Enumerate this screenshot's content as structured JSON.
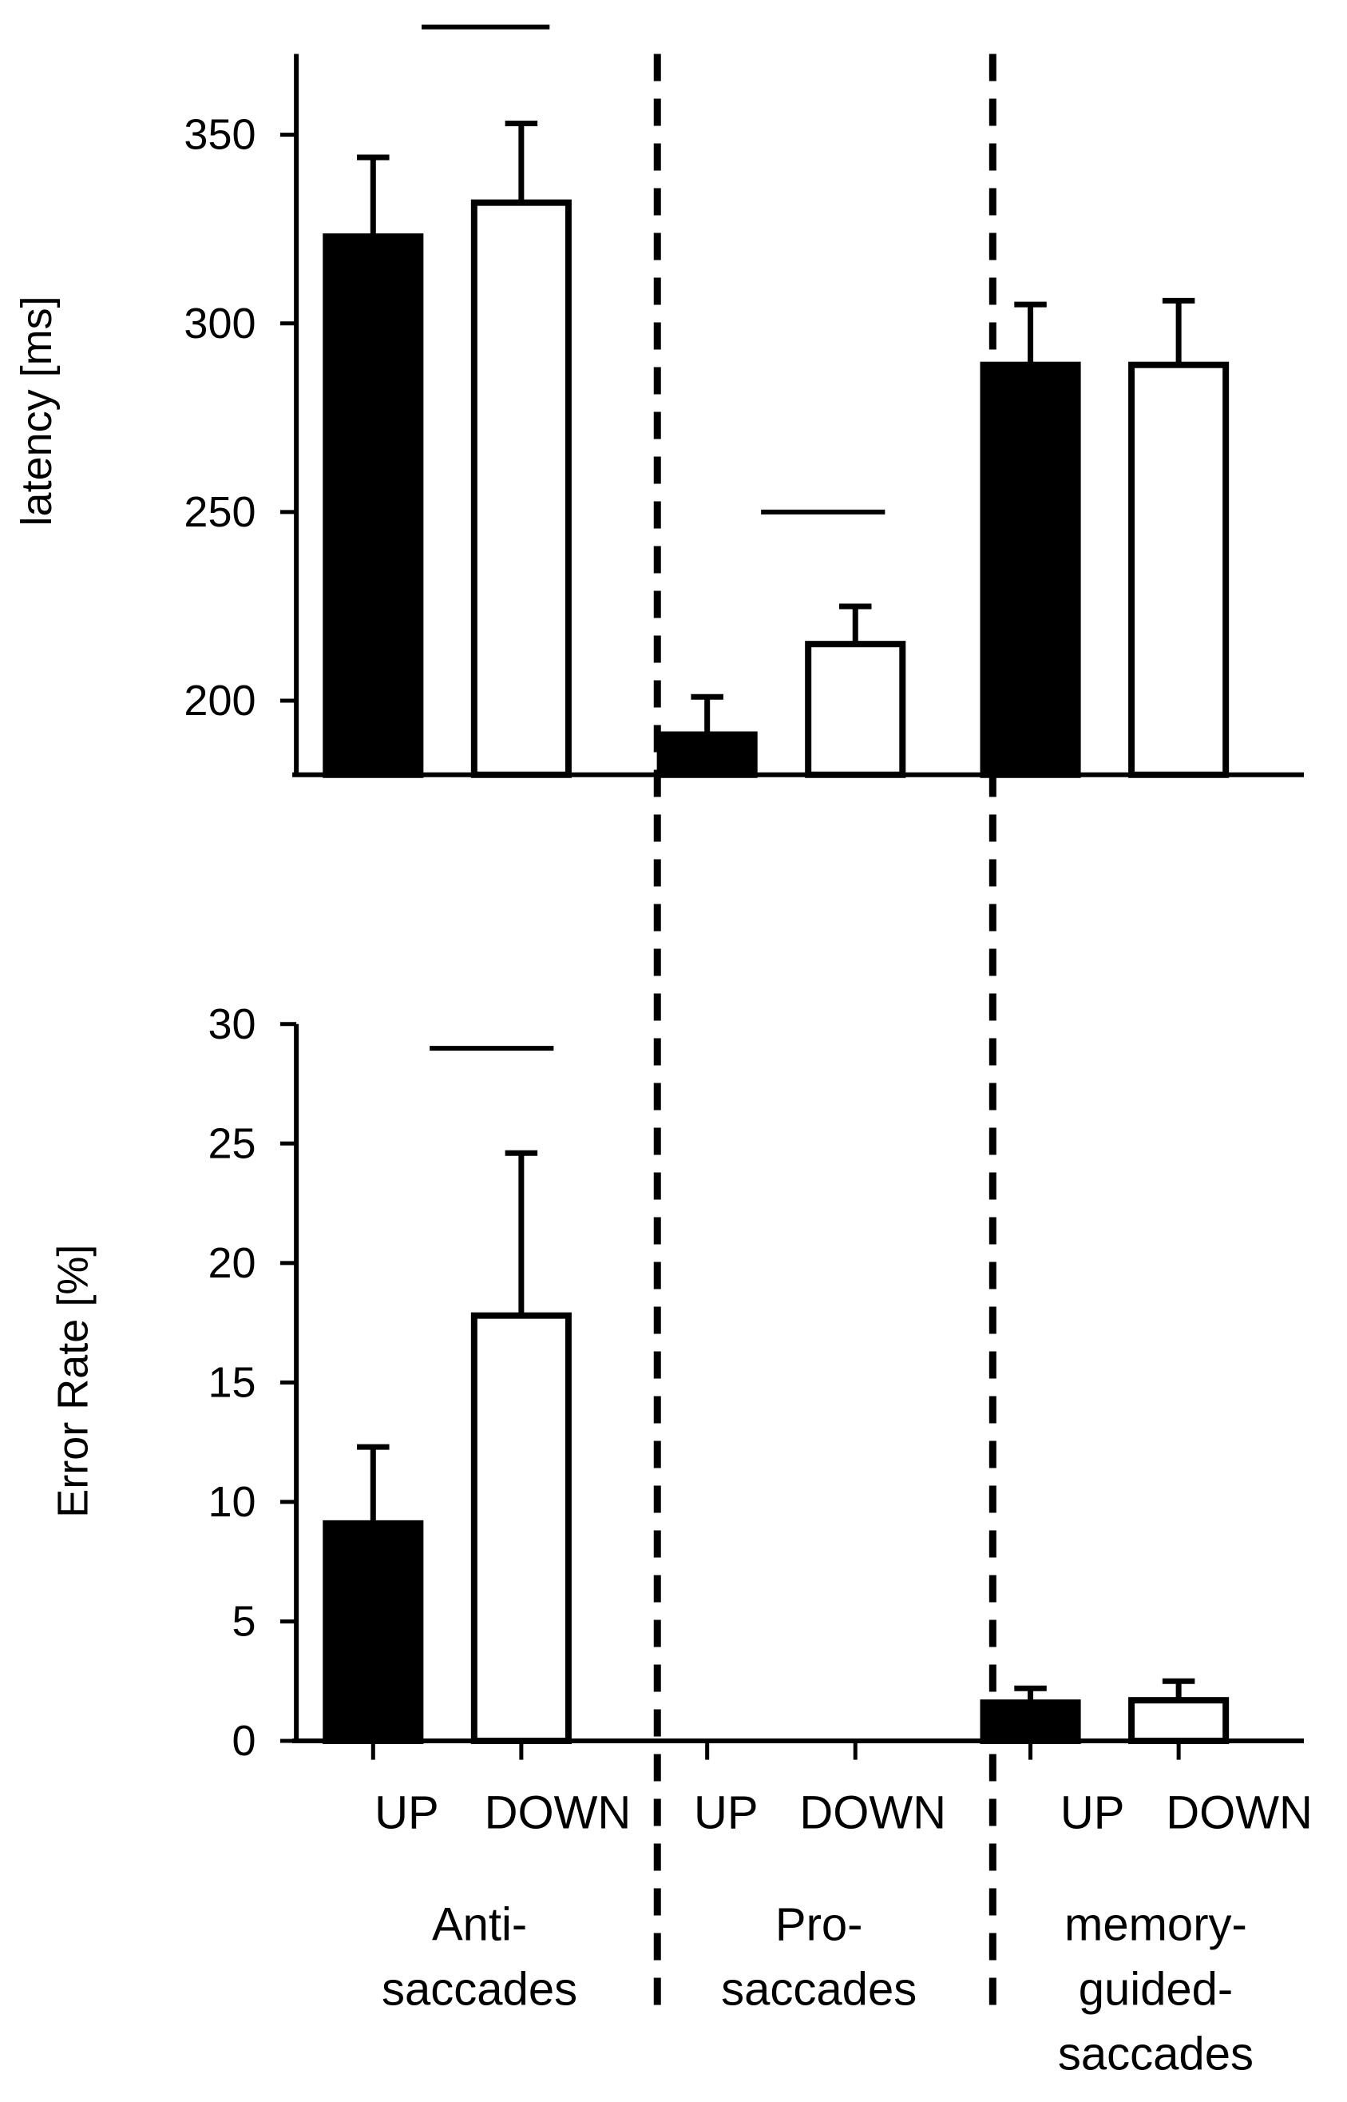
{
  "chart_data": [
    {
      "type": "bar",
      "ylabel": "latency [ms]",
      "ylim": [
        180,
        370
      ],
      "yticks": [
        200,
        250,
        300,
        350
      ],
      "groups": [
        "Anti-saccades",
        "Pro-saccades",
        "memory-guided-saccades"
      ],
      "series": [
        {
          "name": "UP",
          "fill": "#000000",
          "values": [
            323,
            191,
            289
          ],
          "errors": [
            21,
            10,
            16
          ]
        },
        {
          "name": "DOWN",
          "fill": "#ffffff",
          "values": [
            332,
            215,
            289
          ],
          "errors": [
            21,
            10,
            17
          ]
        }
      ],
      "significance": [
        "Anti-saccades",
        "Pro-saccades"
      ]
    },
    {
      "type": "bar",
      "ylabel": "Error Rate [%]",
      "ylim": [
        0,
        30
      ],
      "yticks": [
        0,
        5,
        10,
        15,
        20,
        25,
        30
      ],
      "groups": [
        "Anti-saccades",
        "Pro-saccades",
        "memory-guided-saccades"
      ],
      "series": [
        {
          "name": "UP",
          "fill": "#000000",
          "values": [
            9.1,
            0,
            1.6
          ],
          "errors": [
            3.2,
            0,
            0.6
          ]
        },
        {
          "name": "DOWN",
          "fill": "#ffffff",
          "values": [
            17.8,
            0,
            1.7
          ],
          "errors": [
            6.8,
            0,
            0.8
          ]
        }
      ],
      "significance": [
        "Anti-saccades"
      ]
    }
  ],
  "x_category_labels": [
    {
      "up": "UP",
      "down": "DOWN",
      "group_lines": [
        "Anti-",
        "saccades"
      ]
    },
    {
      "up": "UP",
      "down": "DOWN",
      "group_lines": [
        "Pro-",
        "saccades"
      ]
    },
    {
      "up": "UP",
      "down": "DOWN",
      "group_lines": [
        "memory-",
        "guided-",
        "saccades"
      ]
    }
  ]
}
